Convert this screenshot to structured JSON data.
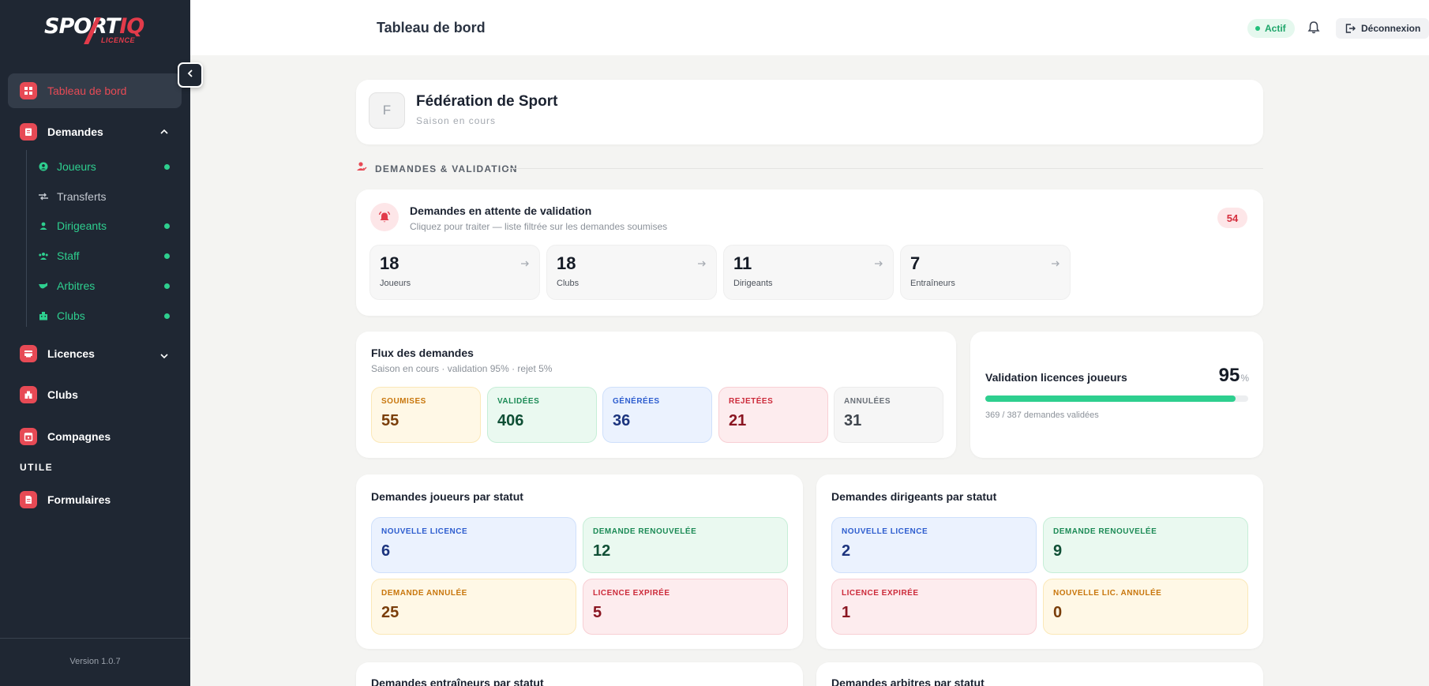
{
  "brand": {
    "name_main": "SPORT",
    "name_accent": "IQ",
    "sub": "LICENCE"
  },
  "sidebar": {
    "items": [
      {
        "label": "Tableau de bord",
        "icon": "dashboard-icon"
      },
      {
        "label": "Demandes",
        "icon": "clipboard-icon"
      },
      {
        "label": "Licences",
        "icon": "card-icon"
      },
      {
        "label": "Clubs",
        "icon": "building-icon"
      },
      {
        "label": "Compagnes",
        "icon": "calendar-icon"
      },
      {
        "label": "Formulaires",
        "icon": "document-icon"
      }
    ],
    "sub_items": [
      {
        "label": "Joueurs",
        "icon": "user-circle-icon",
        "dot": true
      },
      {
        "label": "Transferts",
        "icon": "transfer-icon",
        "dot": false
      },
      {
        "label": "Dirigeants",
        "icon": "person-icon",
        "dot": true
      },
      {
        "label": "Staff",
        "icon": "group-icon",
        "dot": true
      },
      {
        "label": "Arbitres",
        "icon": "whistle-icon",
        "dot": true
      },
      {
        "label": "Clubs",
        "icon": "building-icon",
        "dot": true
      }
    ],
    "section_util": "UTILE",
    "version": "Version 1.0.7"
  },
  "header": {
    "title": "Tableau de bord",
    "status": "Actif",
    "logout": "Déconnexion"
  },
  "org": {
    "initial": "F",
    "name": "Fédération de Sport",
    "season": "Saison en cours"
  },
  "section_demandes": "DEMANDES & VALIDATION",
  "pending": {
    "title": "Demandes en attente de validation",
    "subtitle": "Cliquez pour traiter — liste filtrée sur les demandes soumises",
    "total": "54",
    "items": [
      {
        "value": "18",
        "label": "Joueurs"
      },
      {
        "value": "18",
        "label": "Clubs"
      },
      {
        "value": "11",
        "label": "Dirigeants"
      },
      {
        "value": "7",
        "label": "Entraîneurs"
      }
    ]
  },
  "flux": {
    "title": "Flux des demandes",
    "subtitle": "Saison en cours · validation 95% · rejet 5%",
    "tiles": [
      {
        "label": "SOUMISES",
        "value": "55"
      },
      {
        "label": "VALIDÉES",
        "value": "406"
      },
      {
        "label": "GÉNÉRÉES",
        "value": "36"
      },
      {
        "label": "REJETÉES",
        "value": "21"
      },
      {
        "label": "ANNULÉES",
        "value": "31"
      }
    ]
  },
  "validation": {
    "title": "Validation licences joueurs",
    "percent": "95",
    "unit": "%",
    "progress": 0.953,
    "detail": "369 / 387 demandes validées"
  },
  "joueurs_status": {
    "title": "Demandes joueurs par statut",
    "tiles": [
      {
        "label": "NOUVELLE LICENCE",
        "value": "6"
      },
      {
        "label": "DEMANDE RENOUVELÉE",
        "value": "12"
      },
      {
        "label": "DEMANDE ANNULÉE",
        "value": "25"
      },
      {
        "label": "LICENCE EXPIRÉE",
        "value": "5"
      }
    ]
  },
  "dirigeants_status": {
    "title": "Demandes dirigeants par statut",
    "tiles": [
      {
        "label": "NOUVELLE LICENCE",
        "value": "2"
      },
      {
        "label": "DEMANDE RENOUVELÉE",
        "value": "9"
      },
      {
        "label": "LICENCE EXPIRÉE",
        "value": "1"
      },
      {
        "label": "NOUVELLE LIC. ANNULÉE",
        "value": "0"
      }
    ]
  },
  "entraineurs_status": {
    "title": "Demandes entraîneurs par statut"
  },
  "arbitres_status": {
    "title": "Demandes arbitres par statut"
  },
  "colors": {
    "accent": "#e74a55",
    "success": "#2ecf8f",
    "sidebar": "#1f2733"
  }
}
